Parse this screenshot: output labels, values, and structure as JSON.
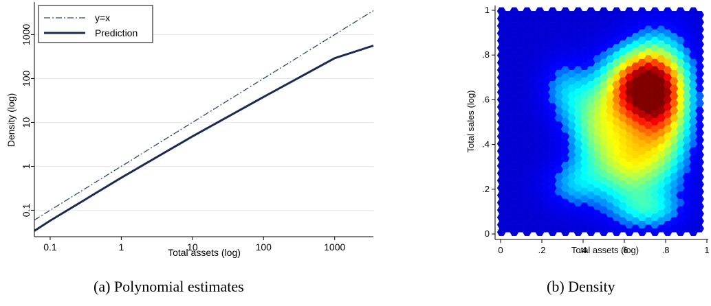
{
  "captions": {
    "a": "(a) Polynomial estimates",
    "b": "(b) Density"
  },
  "chart_data": [
    {
      "type": "line",
      "xlabel": "Total assets (log)",
      "ylabel": "Density (log)",
      "x_scale": "log",
      "y_scale": "log",
      "xlim": [
        0.06,
        3500
      ],
      "ylim": [
        0.025,
        5500
      ],
      "x_ticks": [
        0.1,
        1,
        10,
        100,
        1000
      ],
      "x_tick_labels": [
        "0.1",
        "1",
        "10",
        "100",
        "1000"
      ],
      "y_ticks": [
        0.1,
        1,
        10,
        100,
        1000
      ],
      "y_tick_labels": [
        "0.1",
        "1",
        "10",
        "100",
        "1000"
      ],
      "grid": true,
      "legend_position": "top-left",
      "series": [
        {
          "name": "y=x",
          "style": "dash-dot",
          "color": "#2a4a6a",
          "x": [
            0.06,
            0.1,
            1,
            10,
            100,
            1000,
            3500
          ],
          "y": [
            0.06,
            0.1,
            1,
            10,
            100,
            1000,
            3500
          ]
        },
        {
          "name": "Prediction",
          "style": "solid",
          "color": "#1a2a50",
          "x": [
            0.06,
            0.1,
            1,
            10,
            100,
            1000,
            3500
          ],
          "y": [
            0.034,
            0.058,
            0.55,
            4.8,
            38,
            290,
            560
          ]
        }
      ]
    },
    {
      "type": "heatmap",
      "xlabel": "Total assets (log)",
      "ylabel": "Total sales (log)",
      "xlim": [
        0,
        1
      ],
      "ylim": [
        0,
        1
      ],
      "x_ticks": [
        0,
        0.2,
        0.4,
        0.6,
        0.8,
        1
      ],
      "x_tick_labels": [
        "0",
        ".2",
        ".4",
        ".6",
        ".8",
        "1"
      ],
      "y_ticks": [
        0,
        0.2,
        0.4,
        0.6,
        0.8,
        1
      ],
      "y_tick_labels": [
        "0",
        ".2",
        ".4",
        ".6",
        ".8",
        "1"
      ],
      "colormap": "jet",
      "density_peaks": [
        {
          "x": 0.68,
          "y": 0.66,
          "weight": 1.0,
          "sx": 0.12,
          "sy": 0.12
        },
        {
          "x": 0.8,
          "y": 0.55,
          "weight": 0.55,
          "sx": 0.1,
          "sy": 0.22
        },
        {
          "x": 0.62,
          "y": 0.32,
          "weight": 0.55,
          "sx": 0.12,
          "sy": 0.14
        },
        {
          "x": 0.45,
          "y": 0.5,
          "weight": 0.4,
          "sx": 0.1,
          "sy": 0.14
        },
        {
          "x": 0.3,
          "y": 0.65,
          "weight": 0.22,
          "sx": 0.08,
          "sy": 0.1
        },
        {
          "x": 0.35,
          "y": 0.22,
          "weight": 0.25,
          "sx": 0.1,
          "sy": 0.08
        },
        {
          "x": 0.72,
          "y": 0.1,
          "weight": 0.25,
          "sx": 0.12,
          "sy": 0.06
        }
      ]
    }
  ]
}
